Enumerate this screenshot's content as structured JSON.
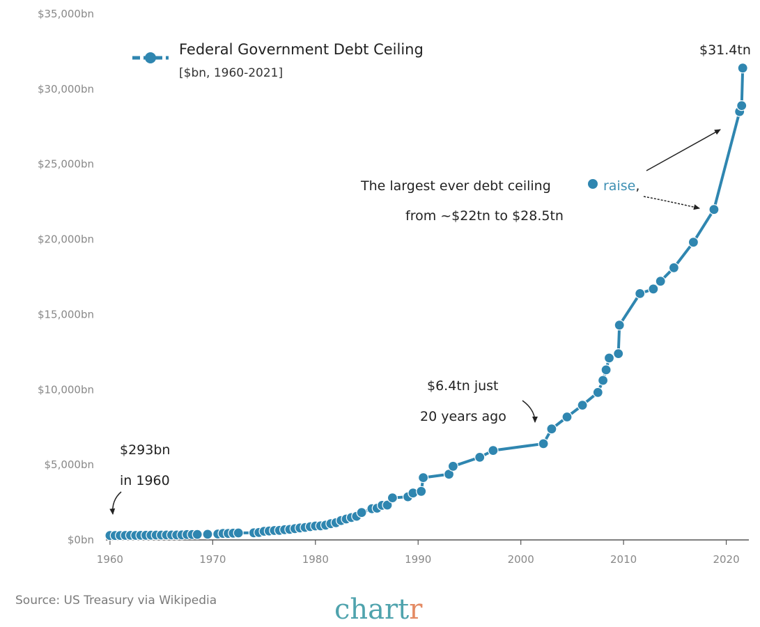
{
  "colors": {
    "series": "#2f86b0",
    "marker_edge": "#ffffff",
    "raise_word": "#3d8fb3",
    "brand_main": "#4fa3ad",
    "brand_accent": "#e48a63"
  },
  "chart_data": {
    "type": "line",
    "title": "Federal Government Debt Ceiling",
    "subtitle": "[$bn, 1960-2021]",
    "xlabel": "",
    "ylabel": "",
    "xlim": [
      1959.6,
      2022.2
    ],
    "ylim": [
      0,
      35000
    ],
    "grid": false,
    "legend_position": "top-left",
    "x_ticks": [
      1960,
      1970,
      1980,
      1990,
      2000,
      2010,
      2020
    ],
    "x_tick_labels": [
      "1960",
      "1970",
      "1980",
      "1990",
      "2000",
      "2010",
      "2020"
    ],
    "y_ticks": [
      0,
      5000,
      10000,
      15000,
      20000,
      25000,
      30000,
      35000
    ],
    "y_tick_labels": [
      "$0bn",
      "$5,000bn",
      "$10,000bn",
      "$15,000bn",
      "$20,000bn",
      "$25,000bn",
      "$30,000bn",
      "$35,000bn"
    ],
    "series": [
      {
        "name": "Federal Government Debt Ceiling",
        "points": [
          [
            1960.0,
            293
          ],
          [
            1960.5,
            293
          ],
          [
            1961.0,
            298
          ],
          [
            1961.5,
            300
          ],
          [
            1962.0,
            308
          ],
          [
            1962.5,
            300
          ],
          [
            1963.0,
            305
          ],
          [
            1963.5,
            309
          ],
          [
            1964.0,
            315
          ],
          [
            1964.5,
            324
          ],
          [
            1965.0,
            324
          ],
          [
            1965.5,
            328
          ],
          [
            1966.0,
            330
          ],
          [
            1966.5,
            330
          ],
          [
            1967.0,
            336
          ],
          [
            1967.5,
            358
          ],
          [
            1968.0,
            358
          ],
          [
            1968.5,
            365
          ],
          [
            1969.5,
            377
          ],
          [
            1970.5,
            395
          ],
          [
            1971.0,
            430
          ],
          [
            1971.5,
            430
          ],
          [
            1972.0,
            450
          ],
          [
            1972.5,
            465
          ],
          [
            1974.0,
            475
          ],
          [
            1974.5,
            495
          ],
          [
            1975.0,
            577
          ],
          [
            1975.5,
            595
          ],
          [
            1976.0,
            627
          ],
          [
            1976.5,
            636
          ],
          [
            1977.0,
            682
          ],
          [
            1977.5,
            700
          ],
          [
            1978.0,
            752
          ],
          [
            1978.5,
            798
          ],
          [
            1979.0,
            830
          ],
          [
            1979.5,
            879
          ],
          [
            1980.0,
            925
          ],
          [
            1980.5,
            935
          ],
          [
            1981.0,
            985
          ],
          [
            1981.5,
            1079
          ],
          [
            1982.0,
            1143
          ],
          [
            1982.5,
            1290
          ],
          [
            1983.0,
            1389
          ],
          [
            1983.5,
            1490
          ],
          [
            1984.0,
            1573
          ],
          [
            1984.5,
            1823
          ],
          [
            1985.5,
            2079
          ],
          [
            1986.0,
            2111
          ],
          [
            1986.5,
            2300
          ],
          [
            1987.0,
            2320
          ],
          [
            1987.5,
            2800
          ],
          [
            1989.0,
            2870
          ],
          [
            1989.5,
            3122
          ],
          [
            1990.3,
            3230
          ],
          [
            1990.5,
            4145
          ],
          [
            1993.0,
            4370
          ],
          [
            1993.4,
            4900
          ],
          [
            1996.0,
            5500
          ],
          [
            1997.3,
            5950
          ],
          [
            2002.2,
            6400
          ],
          [
            2003.0,
            7384
          ],
          [
            2004.5,
            8184
          ],
          [
            2006.0,
            8965
          ],
          [
            2007.5,
            9815
          ],
          [
            2008.0,
            10615
          ],
          [
            2008.3,
            11315
          ],
          [
            2008.6,
            12104
          ],
          [
            2009.5,
            12394
          ],
          [
            2009.6,
            14294
          ],
          [
            2011.6,
            16394
          ],
          [
            2012.9,
            16699
          ],
          [
            2013.6,
            17212
          ],
          [
            2014.9,
            18113
          ],
          [
            2016.8,
            19809
          ],
          [
            2018.8,
            21988
          ],
          [
            2021.3,
            28500
          ],
          [
            2021.5,
            28900
          ],
          [
            2021.6,
            31400
          ]
        ]
      }
    ],
    "annotations": [
      {
        "id": "start",
        "lines": [
          "$293bn",
          "in 1960"
        ]
      },
      {
        "id": "y2002",
        "lines": [
          "$6.4tn just",
          "20 years ago"
        ]
      },
      {
        "id": "largest",
        "line1": "The largest ever debt ceiling",
        "word": "raise",
        "line1_end": ",",
        "line2": "from ~$22tn to $28.5tn"
      },
      {
        "id": "end",
        "lines": [
          "$31.4tn"
        ]
      }
    ]
  },
  "footer": {
    "source": "Source: US Treasury via Wikipedia",
    "brand_main": "chart",
    "brand_accent": "r"
  }
}
